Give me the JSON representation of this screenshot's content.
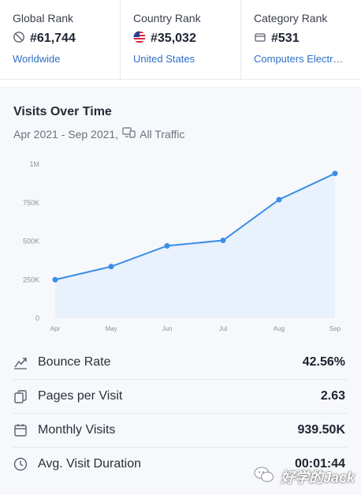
{
  "ranks": [
    {
      "title": "Global Rank",
      "icon": "globe-icon",
      "value": "#61,744",
      "link": "Worldwide"
    },
    {
      "title": "Country Rank",
      "icon": "us-flag-icon",
      "value": "#35,032",
      "link": "United States"
    },
    {
      "title": "Category Rank",
      "icon": "category-icon",
      "value": "#531",
      "link": "Computers Electr…"
    }
  ],
  "chart": {
    "title": "Visits Over Time",
    "date_range": "Apr 2021 - Sep 2021,",
    "traffic_filter": "All Traffic",
    "traffic_icon": "devices-icon"
  },
  "chart_data": {
    "type": "area",
    "categories": [
      "Apr",
      "May",
      "Jun",
      "Jul",
      "Aug",
      "Sep"
    ],
    "y_tick_labels": [
      "1M",
      "750K",
      "500K",
      "250K",
      "0"
    ],
    "ylim": [
      0,
      1000000
    ],
    "series": [
      {
        "values": [
          250000,
          335000,
          470000,
          505000,
          770000,
          940000
        ]
      }
    ],
    "grid": false,
    "accent": "#3a8ee6",
    "fill": "#e8f1fc"
  },
  "metrics": [
    {
      "icon": "bounce-icon",
      "label": "Bounce Rate",
      "value": "42.56%"
    },
    {
      "icon": "pages-icon",
      "label": "Pages per Visit",
      "value": "2.63"
    },
    {
      "icon": "calendar-icon",
      "label": "Monthly Visits",
      "value": "939.50K"
    },
    {
      "icon": "clock-icon",
      "label": "Avg. Visit Duration",
      "value": "00:01:44"
    }
  ],
  "watermark": {
    "text": "好学的Jack",
    "icon": "wechat-icon"
  }
}
